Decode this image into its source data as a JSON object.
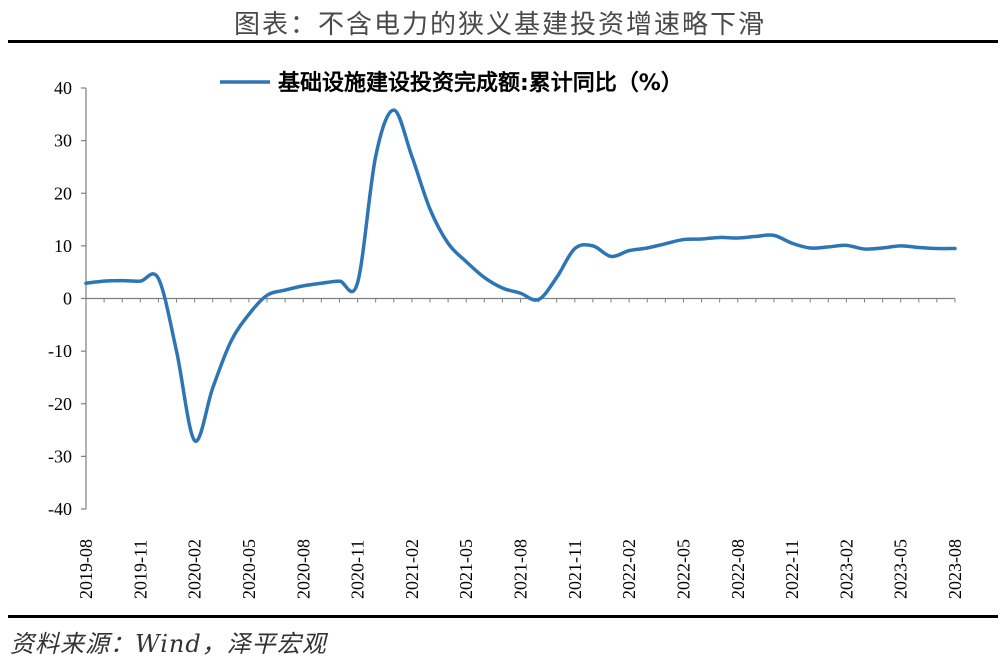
{
  "title": "图表：不含电力的狭义基建投资增速略下滑",
  "source": "资料来源：Wind，泽平宏观",
  "chart_data": {
    "type": "line",
    "title": "图表：不含电力的狭义基建投资增速略下滑",
    "xlabel": "",
    "ylabel": "",
    "ylim": [
      -40,
      40
    ],
    "yticks": [
      40,
      30,
      20,
      10,
      0,
      -10,
      -20,
      -30,
      -40
    ],
    "ytick_labels": [
      "40",
      "30",
      "20",
      "10",
      "0",
      "-10",
      "-20",
      "-30",
      "-40"
    ],
    "xtick_labels": [
      "2019-08",
      "2019-11",
      "2020-02",
      "2020-05",
      "2020-08",
      "2020-11",
      "2021-02",
      "2021-05",
      "2021-08",
      "2021-11",
      "2022-02",
      "2022-05",
      "2022-08",
      "2022-11",
      "2023-02",
      "2023-05",
      "2023-08"
    ],
    "legend_position": "top-center",
    "grid": false,
    "line_color": "#2e75b6",
    "series": [
      {
        "name": "基础设施建设投资完成额:累计同比（%）",
        "x": [
          "2019-08",
          "2019-09",
          "2019-10",
          "2019-11",
          "2019-12",
          "2020-01",
          "2020-02",
          "2020-03",
          "2020-04",
          "2020-05",
          "2020-06",
          "2020-07",
          "2020-08",
          "2020-09",
          "2020-10",
          "2020-11",
          "2020-12",
          "2021-01",
          "2021-02",
          "2021-03",
          "2021-04",
          "2021-05",
          "2021-06",
          "2021-07",
          "2021-08",
          "2021-09",
          "2021-10",
          "2021-11",
          "2021-12",
          "2022-01",
          "2022-02",
          "2022-03",
          "2022-04",
          "2022-05",
          "2022-06",
          "2022-07",
          "2022-08",
          "2022-09",
          "2022-10",
          "2022-11",
          "2022-12",
          "2023-01",
          "2023-02",
          "2023-03",
          "2023-04",
          "2023-05",
          "2023-06",
          "2023-07",
          "2023-08"
        ],
        "values": [
          2.9,
          3.3,
          3.4,
          3.3,
          3.8,
          -10.0,
          -27.0,
          -17.0,
          -8.2,
          -3.0,
          0.6,
          1.6,
          2.4,
          2.9,
          3.3,
          3.0,
          27.0,
          35.8,
          27.0,
          17.0,
          10.5,
          7.0,
          4.0,
          2.0,
          1.0,
          -0.2,
          4.0,
          9.5,
          10.0,
          8.0,
          9.1,
          9.6,
          10.4,
          11.2,
          11.3,
          11.6,
          11.5,
          11.8,
          12.0,
          10.5,
          9.6,
          9.8,
          10.1,
          9.4,
          9.6,
          10.0,
          9.7,
          9.5,
          9.5
        ]
      }
    ]
  }
}
